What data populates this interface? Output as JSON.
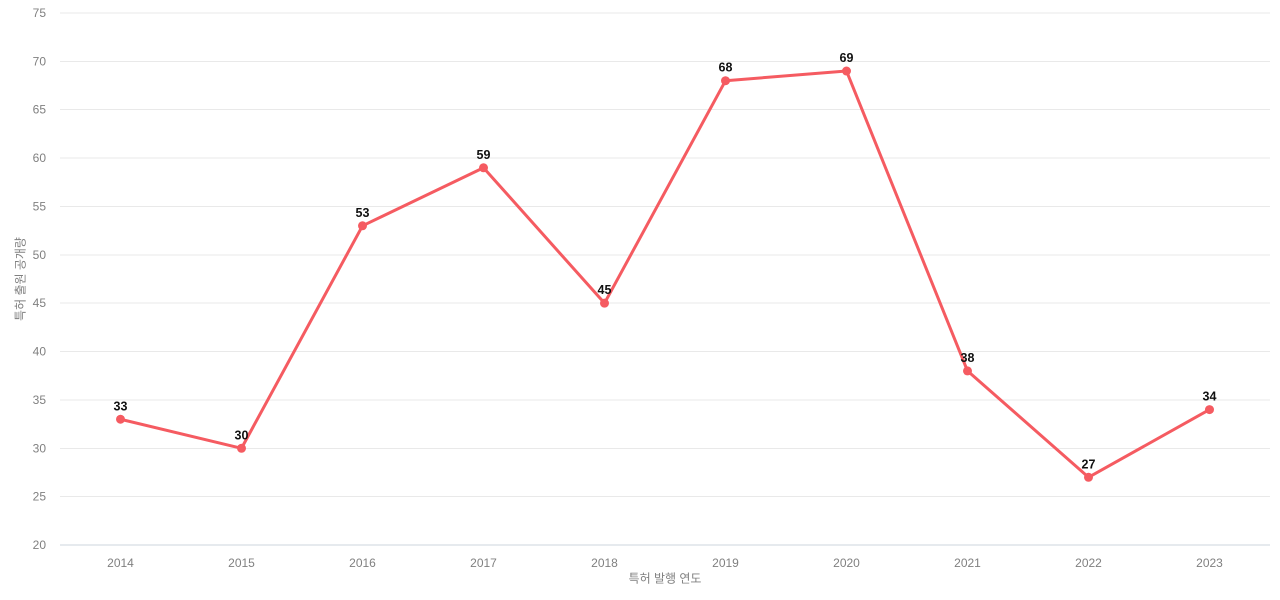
{
  "chart_data": {
    "type": "line",
    "categories": [
      "2014",
      "2015",
      "2016",
      "2017",
      "2018",
      "2019",
      "2020",
      "2021",
      "2022",
      "2023"
    ],
    "values": [
      33,
      30,
      53,
      59,
      45,
      68,
      69,
      38,
      27,
      34
    ],
    "title": "",
    "xlabel": "특허 발행 연도",
    "ylabel": "특허 출원 공개량",
    "ylim": [
      20,
      75
    ],
    "ytick_step": 5,
    "grid": "horizontal",
    "legend_position": "none",
    "point_labels_shown": true
  },
  "style": {
    "line_color": "#f55b61",
    "point_color": "#f55b61",
    "value_label_color": "#111111",
    "tick_label_color": "#808080",
    "axis_title_color": "#808080",
    "gridline_color": "#e9e9e9",
    "axis_line_color": "#ccd6dd",
    "background": "#ffffff"
  }
}
